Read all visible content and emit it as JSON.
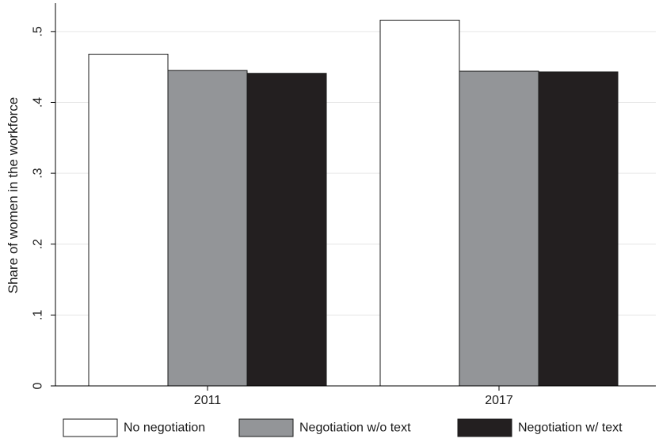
{
  "chart_data": {
    "type": "bar",
    "title": "",
    "xlabel": "",
    "ylabel": "Share of women in the workforce",
    "ylim": [
      0,
      0.54
    ],
    "yticks": [
      0,
      0.1,
      0.2,
      0.3,
      0.4,
      0.5
    ],
    "ytick_labels": [
      "0",
      ".1",
      ".2",
      ".3",
      ".4",
      ".5"
    ],
    "categories": [
      "2011",
      "2017"
    ],
    "series": [
      {
        "name": "No negotiation",
        "values": [
          0.468,
          0.516
        ],
        "color": "#ffffff"
      },
      {
        "name": "Negotiation w/o text",
        "values": [
          0.445,
          0.444
        ],
        "color": "#939598"
      },
      {
        "name": "Negotiation w/ text",
        "values": [
          0.441,
          0.443
        ],
        "color": "#231f20"
      }
    ],
    "grid": true,
    "legend_position": "bottom"
  }
}
